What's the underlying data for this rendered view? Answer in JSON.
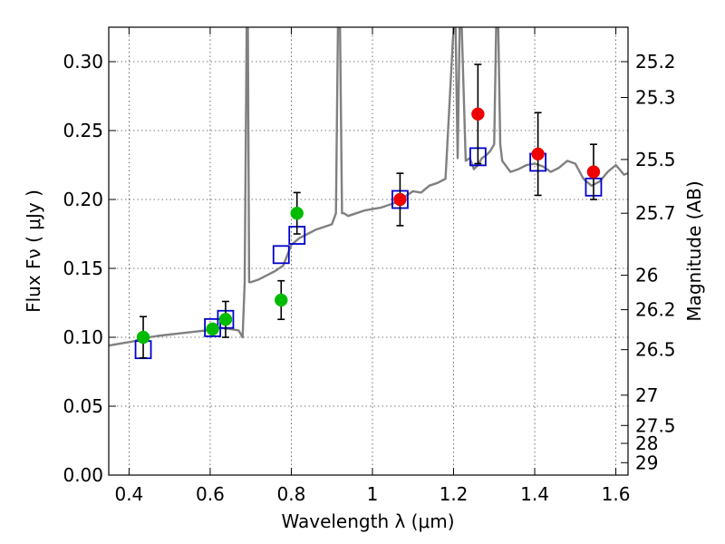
{
  "chart_data": {
    "type": "scatter",
    "xlabel": "Wavelength  λ (μm)",
    "ylabel": "Flux  Fν  ( μJy )",
    "y2label": "Magnitude (AB)",
    "xlim": [
      0.35,
      1.63
    ],
    "ylim": [
      0.0,
      0.325
    ],
    "x_ticks": [
      0.4,
      0.6,
      0.8,
      1.0,
      1.2,
      1.4,
      1.6
    ],
    "x_tick_labels": [
      "0.4",
      "0.6",
      "0.8",
      "1",
      "1.2",
      "1.4",
      "1.6"
    ],
    "y_ticks": [
      0.0,
      0.05,
      0.1,
      0.15,
      0.2,
      0.25,
      0.3
    ],
    "y_tick_labels": [
      "0.00",
      "0.05",
      "0.10",
      "0.15",
      "0.20",
      "0.25",
      "0.30"
    ],
    "magnitude_ticks": [
      {
        "label": "25.2",
        "flux": 0.3
      },
      {
        "label": "25.3",
        "flux": 0.274
      },
      {
        "label": "25.5",
        "flux": 0.229
      },
      {
        "label": "25.7",
        "flux": 0.19
      },
      {
        "label": "26",
        "flux": 0.145
      },
      {
        "label": "26.2",
        "flux": 0.12
      },
      {
        "label": "26.5",
        "flux": 0.091
      },
      {
        "label": "27",
        "flux": 0.058
      },
      {
        "label": "27.5",
        "flux": 0.036
      },
      {
        "label": "28",
        "flux": 0.023
      },
      {
        "label": "29",
        "flux": 0.009
      }
    ],
    "grid": true,
    "series": [
      {
        "kind": "spectrum",
        "color": "#808080",
        "x": [
          0.35,
          0.37,
          0.39,
          0.41,
          0.43,
          0.45,
          0.47,
          0.5,
          0.53,
          0.56,
          0.59,
          0.62,
          0.65,
          0.67,
          0.68,
          0.685,
          0.69,
          0.693,
          0.696,
          0.7,
          0.72,
          0.74,
          0.76,
          0.78,
          0.8,
          0.82,
          0.84,
          0.86,
          0.88,
          0.9,
          0.91,
          0.915,
          0.92,
          0.925,
          0.93,
          0.94,
          0.96,
          0.98,
          1.0,
          1.02,
          1.04,
          1.06,
          1.08,
          1.1,
          1.12,
          1.14,
          1.16,
          1.18,
          1.2,
          1.205,
          1.21,
          1.215,
          1.22,
          1.23,
          1.24,
          1.25,
          1.26,
          1.27,
          1.28,
          1.29,
          1.3,
          1.305,
          1.31,
          1.315,
          1.32,
          1.34,
          1.36,
          1.38,
          1.4,
          1.42,
          1.44,
          1.46,
          1.48,
          1.5,
          1.52,
          1.54,
          1.56,
          1.58,
          1.6,
          1.62,
          1.63
        ],
        "y": [
          0.094,
          0.095,
          0.096,
          0.097,
          0.099,
          0.1,
          0.101,
          0.102,
          0.103,
          0.104,
          0.105,
          0.107,
          0.106,
          0.105,
          0.1,
          0.14,
          0.325,
          0.325,
          0.14,
          0.14,
          0.142,
          0.145,
          0.148,
          0.152,
          0.167,
          0.172,
          0.175,
          0.178,
          0.18,
          0.182,
          0.19,
          0.325,
          0.325,
          0.19,
          0.19,
          0.188,
          0.19,
          0.192,
          0.193,
          0.194,
          0.196,
          0.198,
          0.202,
          0.206,
          0.205,
          0.21,
          0.212,
          0.215,
          0.325,
          0.325,
          0.23,
          0.325,
          0.325,
          0.228,
          0.23,
          0.222,
          0.225,
          0.23,
          0.232,
          0.235,
          0.24,
          0.325,
          0.325,
          0.24,
          0.228,
          0.22,
          0.222,
          0.225,
          0.226,
          0.224,
          0.22,
          0.223,
          0.228,
          0.226,
          0.215,
          0.21,
          0.213,
          0.22,
          0.225,
          0.218,
          0.219
        ]
      },
      {
        "kind": "model_photometry",
        "marker": "open-square",
        "color": "#0000cc",
        "x": [
          0.435,
          0.606,
          0.638,
          0.775,
          0.814,
          1.068,
          1.26,
          1.408,
          1.545
        ],
        "y": [
          0.091,
          0.107,
          0.113,
          0.16,
          0.174,
          0.2,
          0.231,
          0.227,
          0.209
        ]
      },
      {
        "kind": "observed_optical",
        "marker": "filled-circle",
        "color": "#00bb00",
        "x": [
          0.435,
          0.606,
          0.638,
          0.775,
          0.814
        ],
        "y": [
          0.1,
          0.106,
          0.113,
          0.127,
          0.19
        ],
        "err": [
          0.015,
          0.002,
          0.013,
          0.014,
          0.015
        ]
      },
      {
        "kind": "observed_nir",
        "marker": "filled-circle",
        "color": "#ee0000",
        "x": [
          1.068,
          1.26,
          1.408,
          1.545
        ],
        "y": [
          0.2,
          0.262,
          0.233,
          0.22
        ],
        "err": [
          0.019,
          0.036,
          0.03,
          0.02
        ]
      }
    ]
  }
}
